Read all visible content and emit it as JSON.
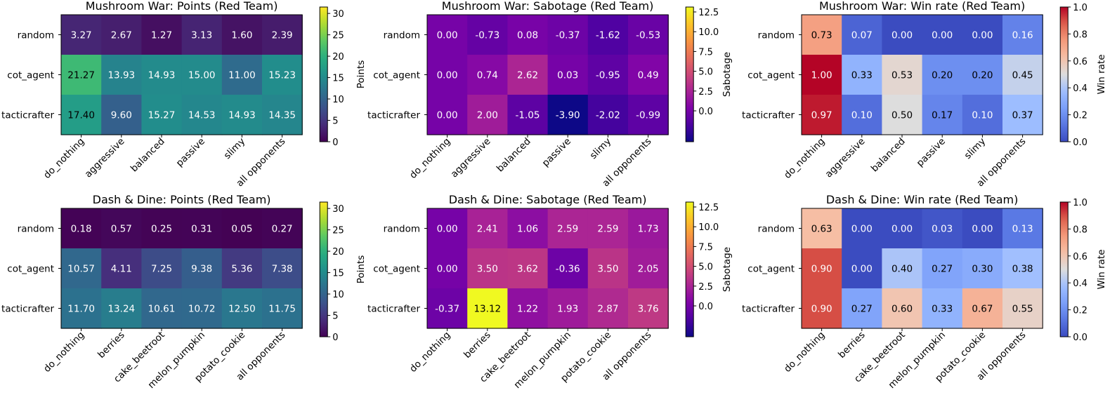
{
  "chart_data": [
    {
      "type": "heatmap",
      "title": "Mushroom War: Points (Red Team)",
      "rows": [
        "random",
        "cot_agent",
        "tacticrafter"
      ],
      "cols": [
        "do_nothing",
        "aggressive",
        "balanced",
        "passive",
        "slimy",
        "all opponents"
      ],
      "values": [
        [
          3.27,
          2.67,
          1.27,
          3.13,
          1.6,
          2.39
        ],
        [
          21.27,
          13.93,
          14.93,
          15.0,
          11.0,
          15.23
        ],
        [
          17.4,
          9.6,
          15.27,
          14.53,
          14.93,
          14.35
        ]
      ],
      "labels": [
        [
          "3.27",
          "2.67",
          "1.27",
          "3.13",
          "1.60",
          "2.39"
        ],
        [
          "21.27",
          "13.93",
          "14.93",
          "15.00",
          "11.00",
          "15.23"
        ],
        [
          "17.40",
          "9.60",
          "15.27",
          "14.53",
          "14.93",
          "14.35"
        ]
      ],
      "cmap": "viridis",
      "vmin": 0,
      "vmax": 31.5,
      "colorbar_label": "Points",
      "colorbar_ticks": [
        "0",
        "5",
        "10",
        "15",
        "20",
        "25",
        "30"
      ],
      "colorbar_tick_values": [
        0,
        5,
        10,
        15,
        20,
        25,
        30
      ]
    },
    {
      "type": "heatmap",
      "title": "Mushroom War: Sabotage (Red Team)",
      "rows": [
        "random",
        "cot_agent",
        "tacticrafter"
      ],
      "cols": [
        "do_nothing",
        "aggressive",
        "balanced",
        "passive",
        "slimy",
        "all opponents"
      ],
      "values": [
        [
          0.0,
          -0.73,
          0.08,
          -0.37,
          -1.62,
          -0.53
        ],
        [
          0.0,
          0.74,
          2.62,
          0.03,
          -0.95,
          0.49
        ],
        [
          0.0,
          2.0,
          -1.05,
          -3.9,
          -2.02,
          -0.99
        ]
      ],
      "labels": [
        [
          "0.00",
          "-0.73",
          "0.08",
          "-0.37",
          "-1.62",
          "-0.53"
        ],
        [
          "0.00",
          "0.74",
          "2.62",
          "0.03",
          "-0.95",
          "0.49"
        ],
        [
          "0.00",
          "2.00",
          "-1.05",
          "-3.90",
          "-2.02",
          "-0.99"
        ]
      ],
      "cmap": "plasma",
      "vmin": -3.9,
      "vmax": 13.12,
      "colorbar_label": "Sabotage",
      "colorbar_ticks": [
        "0.0",
        "2.5",
        "5.0",
        "7.5",
        "10.0",
        "12.5"
      ],
      "colorbar_tick_values": [
        0,
        2.5,
        5,
        7.5,
        10,
        12.5
      ]
    },
    {
      "type": "heatmap",
      "title": "Mushroom War: Win rate (Red Team)",
      "rows": [
        "random",
        "cot_agent",
        "tacticrafter"
      ],
      "cols": [
        "do_nothing",
        "aggressive",
        "balanced",
        "passive",
        "slimy",
        "all opponents"
      ],
      "values": [
        [
          0.73,
          0.07,
          0.0,
          0.0,
          0.0,
          0.16
        ],
        [
          1.0,
          0.33,
          0.53,
          0.2,
          0.2,
          0.45
        ],
        [
          0.97,
          0.1,
          0.5,
          0.17,
          0.1,
          0.37
        ]
      ],
      "labels": [
        [
          "0.73",
          "0.07",
          "0.00",
          "0.00",
          "0.00",
          "0.16"
        ],
        [
          "1.00",
          "0.33",
          "0.53",
          "0.20",
          "0.20",
          "0.45"
        ],
        [
          "0.97",
          "0.10",
          "0.50",
          "0.17",
          "0.10",
          "0.37"
        ]
      ],
      "cmap": "coolwarm",
      "vmin": 0,
      "vmax": 1,
      "colorbar_label": "Win rate",
      "colorbar_ticks": [
        "0.0",
        "0.2",
        "0.4",
        "0.6",
        "0.8",
        "1.0"
      ],
      "colorbar_tick_values": [
        0,
        0.2,
        0.4,
        0.6,
        0.8,
        1.0
      ]
    },
    {
      "type": "heatmap",
      "title": "Dash & Dine: Points (Red Team)",
      "rows": [
        "random",
        "cot_agent",
        "tacticrafter"
      ],
      "cols": [
        "do_nothing",
        "berries",
        "cake_beetroot",
        "melon_pumpkin",
        "potato_cookie",
        "all opponents"
      ],
      "values": [
        [
          0.18,
          0.57,
          0.25,
          0.31,
          0.05,
          0.27
        ],
        [
          10.57,
          4.11,
          7.25,
          9.38,
          5.36,
          7.38
        ],
        [
          11.7,
          13.24,
          10.61,
          10.72,
          12.5,
          11.75
        ]
      ],
      "labels": [
        [
          "0.18",
          "0.57",
          "0.25",
          "0.31",
          "0.05",
          "0.27"
        ],
        [
          "10.57",
          "4.11",
          "7.25",
          "9.38",
          "5.36",
          "7.38"
        ],
        [
          "11.70",
          "13.24",
          "10.61",
          "10.72",
          "12.50",
          "11.75"
        ]
      ],
      "cmap": "viridis",
      "vmin": 0,
      "vmax": 31.5,
      "colorbar_label": "Points",
      "colorbar_ticks": [
        "0",
        "5",
        "10",
        "15",
        "20",
        "25",
        "30"
      ],
      "colorbar_tick_values": [
        0,
        5,
        10,
        15,
        20,
        25,
        30
      ]
    },
    {
      "type": "heatmap",
      "title": "Dash & Dine: Sabotage (Red Team)",
      "rows": [
        "random",
        "cot_agent",
        "tacticrafter"
      ],
      "cols": [
        "do_nothing",
        "berries",
        "cake_beetroot",
        "melon_pumpkin",
        "potato_cookie",
        "all opponents"
      ],
      "values": [
        [
          0.0,
          2.41,
          1.06,
          2.59,
          2.59,
          1.73
        ],
        [
          0.0,
          3.5,
          3.62,
          -0.36,
          3.5,
          2.05
        ],
        [
          -0.37,
          13.12,
          1.22,
          1.93,
          2.87,
          3.76
        ]
      ],
      "labels": [
        [
          "0.00",
          "2.41",
          "1.06",
          "2.59",
          "2.59",
          "1.73"
        ],
        [
          "0.00",
          "3.50",
          "3.62",
          "-0.36",
          "3.50",
          "2.05"
        ],
        [
          "-0.37",
          "13.12",
          "1.22",
          "1.93",
          "2.87",
          "3.76"
        ]
      ],
      "cmap": "plasma",
      "vmin": -3.9,
      "vmax": 13.12,
      "colorbar_label": "Sabotage",
      "colorbar_ticks": [
        "0.0",
        "2.5",
        "5.0",
        "7.5",
        "10.0",
        "12.5"
      ],
      "colorbar_tick_values": [
        0,
        2.5,
        5,
        7.5,
        10,
        12.5
      ]
    },
    {
      "type": "heatmap",
      "title": "Dash & Dine: Win rate (Red Team)",
      "rows": [
        "random",
        "cot_agent",
        "tacticrafter"
      ],
      "cols": [
        "do_nothing",
        "berries",
        "cake_beetroot",
        "melon_pumpkin",
        "potato_cookie",
        "all opponents"
      ],
      "values": [
        [
          0.63,
          0.0,
          0.0,
          0.03,
          0.0,
          0.13
        ],
        [
          0.9,
          0.0,
          0.4,
          0.27,
          0.3,
          0.38
        ],
        [
          0.9,
          0.27,
          0.6,
          0.33,
          0.67,
          0.55
        ]
      ],
      "labels": [
        [
          "0.63",
          "0.00",
          "0.00",
          "0.03",
          "0.00",
          "0.13"
        ],
        [
          "0.90",
          "0.00",
          "0.40",
          "0.27",
          "0.30",
          "0.38"
        ],
        [
          "0.90",
          "0.27",
          "0.60",
          "0.33",
          "0.67",
          "0.55"
        ]
      ],
      "cmap": "coolwarm",
      "vmin": 0,
      "vmax": 1,
      "colorbar_label": "Win rate",
      "colorbar_ticks": [
        "0.0",
        "0.2",
        "0.4",
        "0.6",
        "0.8",
        "1.0"
      ],
      "colorbar_tick_values": [
        0,
        0.2,
        0.4,
        0.6,
        0.8,
        1.0
      ]
    }
  ]
}
